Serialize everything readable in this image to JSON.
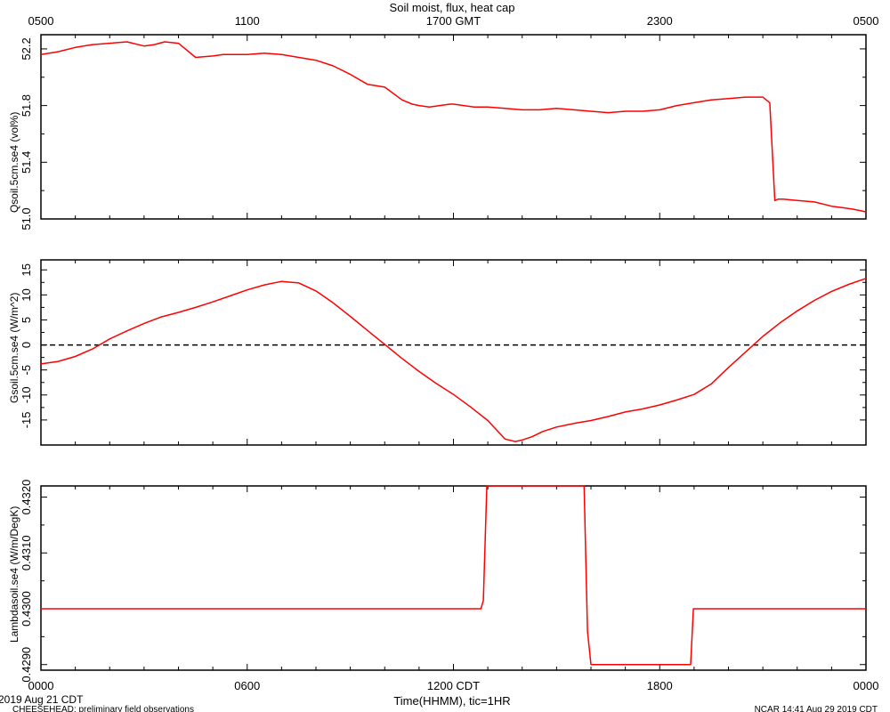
{
  "title": "Soil moist, flux, heat cap",
  "top_axis": {
    "ticks": [
      "0500",
      "1100",
      "1700 GMT",
      "2300",
      "0500"
    ]
  },
  "bottom_axis": {
    "ticks": [
      "0000",
      "0600",
      "1200 CDT",
      "1800",
      "0000"
    ],
    "label": "Time(HHMM), tic=1HR"
  },
  "footer": {
    "date": "2019 Aug 21 CDT",
    "project": "CHEESEHEAD: preliminary field observations",
    "stamp": "NCAR 14:41 Aug 29 2019 CDT"
  },
  "colors": {
    "series": "#ff0000",
    "axis": "#000000",
    "zero_line": "#000000"
  },
  "chart_data": [
    {
      "type": "line",
      "ylabel": "Qsoil.5cm.se4 (vol%)",
      "ylim": [
        51.0,
        52.3
      ],
      "yticks": [
        "51.0",
        "51.4",
        "51.8",
        "52.2"
      ],
      "xlim": [
        0,
        24
      ],
      "series": [
        {
          "x": [
            0,
            0.5,
            1,
            1.5,
            2,
            2.5,
            3,
            3.3,
            3.6,
            4,
            4.5,
            5,
            5.3,
            5.7,
            6,
            6.5,
            7,
            7.5,
            8,
            8.5,
            9,
            9.5,
            10,
            10.5,
            10.8,
            11,
            11.3,
            11.6,
            11.9,
            12,
            12.3,
            12.6,
            13,
            13.5,
            14,
            14.5,
            15,
            15.5,
            16,
            16.5,
            17,
            17.5,
            18,
            18.5,
            19,
            19.5,
            20,
            20.5,
            21,
            21.2,
            21.35,
            21.45,
            21.6,
            22,
            22.5,
            23,
            23.3,
            23.6,
            24
          ],
          "values": [
            52.16,
            52.18,
            52.21,
            52.23,
            52.24,
            52.25,
            52.22,
            52.23,
            52.25,
            52.24,
            52.14,
            52.15,
            52.16,
            52.16,
            52.16,
            52.17,
            52.16,
            52.14,
            52.12,
            52.08,
            52.02,
            51.95,
            51.93,
            51.84,
            51.81,
            51.8,
            51.79,
            51.8,
            51.81,
            51.81,
            51.8,
            51.79,
            51.79,
            51.78,
            51.77,
            51.77,
            51.78,
            51.77,
            51.76,
            51.75,
            51.76,
            51.76,
            51.77,
            51.8,
            51.82,
            51.84,
            51.85,
            51.86,
            51.86,
            51.82,
            51.13,
            51.14,
            51.14,
            51.13,
            51.12,
            51.09,
            51.08,
            51.07,
            51.05
          ]
        }
      ]
    },
    {
      "type": "line",
      "ylabel": "Gsoil.5cm.se4 (W/m^2)",
      "ylim": [
        -20,
        17
      ],
      "yticks": [
        "-15",
        "-10",
        "-5",
        "0",
        "5",
        "10",
        "15"
      ],
      "reference_line": 0,
      "xlim": [
        0,
        24
      ],
      "series": [
        {
          "x": [
            0,
            0.5,
            1,
            1.5,
            2,
            2.5,
            3,
            3.5,
            4,
            4.5,
            5,
            5.5,
            6,
            6.5,
            7,
            7.5,
            8,
            8.5,
            9,
            9.5,
            10,
            10.5,
            11,
            11.5,
            12,
            12.5,
            13,
            13.5,
            13.8,
            14,
            14.3,
            14.6,
            15,
            15.5,
            16,
            16.5,
            17,
            17.5,
            18,
            18.5,
            19,
            19.5,
            20,
            20.5,
            21,
            21.5,
            22,
            22.5,
            23,
            23.5,
            24
          ],
          "values": [
            -3.8,
            -3.3,
            -2.3,
            -0.8,
            1.2,
            2.8,
            4.3,
            5.6,
            6.5,
            7.5,
            8.6,
            9.8,
            11.0,
            12.0,
            12.7,
            12.4,
            10.8,
            8.4,
            5.7,
            2.9,
            0.1,
            -2.7,
            -5.3,
            -7.7,
            -9.9,
            -12.4,
            -15.1,
            -18.8,
            -19.3,
            -19.0,
            -18.3,
            -17.3,
            -16.4,
            -15.7,
            -15.1,
            -14.3,
            -13.4,
            -12.8,
            -12.0,
            -11.0,
            -9.9,
            -7.8,
            -4.5,
            -1.4,
            1.7,
            4.4,
            6.8,
            8.9,
            10.7,
            12.1,
            13.3
          ]
        }
      ]
    },
    {
      "type": "line",
      "ylabel": "Lambdasoil.se4 (W/m/DegK)",
      "ylim": [
        0.4289,
        0.4322
      ],
      "yticks": [
        "0.4290",
        "0.4300",
        "0.4310",
        "0.4320"
      ],
      "xlim": [
        0,
        24
      ],
      "series": [
        {
          "x": [
            0,
            12.8,
            12.87,
            12.97,
            15.8,
            15.9,
            16.0,
            18.9,
            18.98,
            24
          ],
          "values": [
            0.43,
            0.43,
            0.43015,
            0.4322,
            0.4322,
            0.4296,
            0.429,
            0.429,
            0.43,
            0.43
          ]
        }
      ]
    }
  ]
}
